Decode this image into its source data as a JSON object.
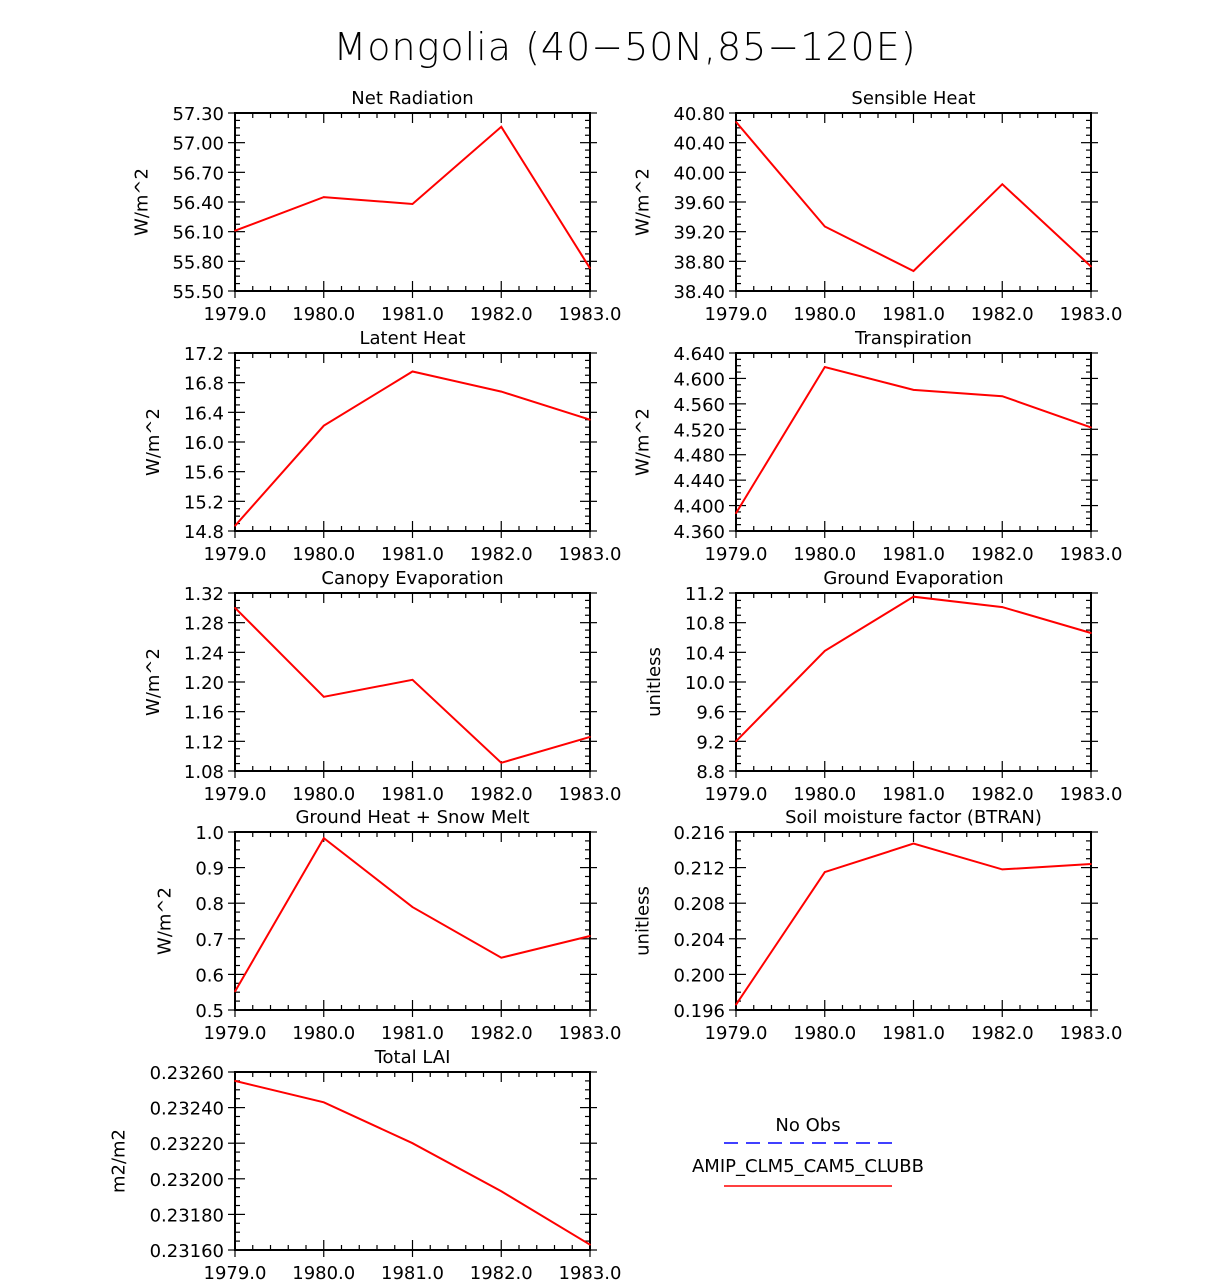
{
  "title": "Mongolia (40−50N,85−120E)",
  "colors": {
    "model": "#ff0000",
    "obs": "#0000ff"
  },
  "legend": {
    "obs_label": "No Obs",
    "model_label": "AMIP_CLM5_CAM5_CLUBB"
  },
  "chart_data": [
    {
      "type": "line",
      "title": "Net Radiation",
      "ylabel": "W/m^2",
      "x": [
        1979,
        1980,
        1981,
        1982,
        1983
      ],
      "xticks": [
        "1979.0",
        "1980.0",
        "1981.0",
        "1982.0",
        "1983.0"
      ],
      "ylim": [
        55.5,
        57.3
      ],
      "yticks": [
        "55.50",
        "55.80",
        "56.10",
        "56.40",
        "56.70",
        "57.00",
        "57.30"
      ],
      "series": [
        {
          "name": "AMIP_CLM5_CAM5_CLUBB",
          "values": [
            56.11,
            56.45,
            56.38,
            57.16,
            55.73
          ]
        }
      ]
    },
    {
      "type": "line",
      "title": "Sensible Heat",
      "ylabel": "W/m^2",
      "x": [
        1979,
        1980,
        1981,
        1982,
        1983
      ],
      "xticks": [
        "1979.0",
        "1980.0",
        "1981.0",
        "1982.0",
        "1983.0"
      ],
      "ylim": [
        38.4,
        40.8
      ],
      "yticks": [
        "38.40",
        "38.80",
        "39.20",
        "39.60",
        "40.00",
        "40.40",
        "40.80"
      ],
      "series": [
        {
          "name": "AMIP_CLM5_CAM5_CLUBB",
          "values": [
            40.68,
            39.27,
            38.67,
            39.84,
            38.73
          ]
        }
      ]
    },
    {
      "type": "line",
      "title": "Latent Heat",
      "ylabel": "W/m^2",
      "x": [
        1979,
        1980,
        1981,
        1982,
        1983
      ],
      "xticks": [
        "1979.0",
        "1980.0",
        "1981.0",
        "1982.0",
        "1983.0"
      ],
      "ylim": [
        14.8,
        17.2
      ],
      "yticks": [
        "14.8",
        "15.2",
        "15.6",
        "16.0",
        "16.4",
        "16.8",
        "17.2"
      ],
      "series": [
        {
          "name": "AMIP_CLM5_CAM5_CLUBB",
          "values": [
            14.87,
            16.22,
            16.95,
            16.68,
            16.3
          ]
        }
      ]
    },
    {
      "type": "line",
      "title": "Transpiration",
      "ylabel": "W/m^2",
      "x": [
        1979,
        1980,
        1981,
        1982,
        1983
      ],
      "xticks": [
        "1979.0",
        "1980.0",
        "1981.0",
        "1982.0",
        "1983.0"
      ],
      "ylim": [
        4.36,
        4.64
      ],
      "yticks": [
        "4.360",
        "4.400",
        "4.440",
        "4.480",
        "4.520",
        "4.560",
        "4.600",
        "4.640"
      ],
      "series": [
        {
          "name": "AMIP_CLM5_CAM5_CLUBB",
          "values": [
            4.388,
            4.618,
            4.582,
            4.572,
            4.523
          ]
        }
      ]
    },
    {
      "type": "line",
      "title": "Canopy Evaporation",
      "ylabel": "W/m^2",
      "x": [
        1979,
        1980,
        1981,
        1982,
        1983
      ],
      "xticks": [
        "1979.0",
        "1980.0",
        "1981.0",
        "1982.0",
        "1983.0"
      ],
      "ylim": [
        1.08,
        1.32
      ],
      "yticks": [
        "1.08",
        "1.12",
        "1.16",
        "1.20",
        "1.24",
        "1.28",
        "1.32"
      ],
      "series": [
        {
          "name": "AMIP_CLM5_CAM5_CLUBB",
          "values": [
            1.3,
            1.18,
            1.203,
            1.091,
            1.126
          ]
        }
      ]
    },
    {
      "type": "line",
      "title": "Ground Evaporation",
      "ylabel": "unitless",
      "x": [
        1979,
        1980,
        1981,
        1982,
        1983
      ],
      "xticks": [
        "1979.0",
        "1980.0",
        "1981.0",
        "1982.0",
        "1983.0"
      ],
      "ylim": [
        8.8,
        11.2
      ],
      "yticks": [
        "8.8",
        "9.2",
        "9.6",
        "10.0",
        "10.4",
        "10.8",
        "11.2"
      ],
      "series": [
        {
          "name": "AMIP_CLM5_CAM5_CLUBB",
          "values": [
            9.2,
            10.42,
            11.15,
            11.01,
            10.66
          ]
        }
      ]
    },
    {
      "type": "line",
      "title": "Ground Heat + Snow Melt",
      "ylabel": "W/m^2",
      "x": [
        1979,
        1980,
        1981,
        1982,
        1983
      ],
      "xticks": [
        "1979.0",
        "1980.0",
        "1981.0",
        "1982.0",
        "1983.0"
      ],
      "ylim": [
        0.5,
        1.0
      ],
      "yticks": [
        "0.5",
        "0.6",
        "0.7",
        "0.8",
        "0.9",
        "1.0"
      ],
      "series": [
        {
          "name": "AMIP_CLM5_CAM5_CLUBB",
          "values": [
            0.552,
            0.983,
            0.789,
            0.647,
            0.708
          ]
        }
      ]
    },
    {
      "type": "line",
      "title": "Soil moisture factor (BTRAN)",
      "ylabel": "unitless",
      "x": [
        1979,
        1980,
        1981,
        1982,
        1983
      ],
      "xticks": [
        "1979.0",
        "1980.0",
        "1981.0",
        "1982.0",
        "1983.0"
      ],
      "ylim": [
        0.196,
        0.216
      ],
      "yticks": [
        "0.196",
        "0.200",
        "0.204",
        "0.208",
        "0.212",
        "0.216"
      ],
      "series": [
        {
          "name": "AMIP_CLM5_CAM5_CLUBB",
          "values": [
            0.1966,
            0.2115,
            0.2147,
            0.2118,
            0.2124
          ]
        }
      ]
    },
    {
      "type": "line",
      "title": "Total LAI",
      "ylabel": "m2/m2",
      "x": [
        1979,
        1980,
        1981,
        1982,
        1983
      ],
      "xticks": [
        "1979.0",
        "1980.0",
        "1981.0",
        "1982.0",
        "1983.0"
      ],
      "ylim": [
        0.2316,
        0.2326
      ],
      "yticks": [
        "0.23160",
        "0.23180",
        "0.23200",
        "0.23220",
        "0.23240",
        "0.23260"
      ],
      "series": [
        {
          "name": "AMIP_CLM5_CAM5_CLUBB",
          "values": [
            0.23255,
            0.23243,
            0.2322,
            0.23193,
            0.23163
          ]
        }
      ]
    }
  ]
}
